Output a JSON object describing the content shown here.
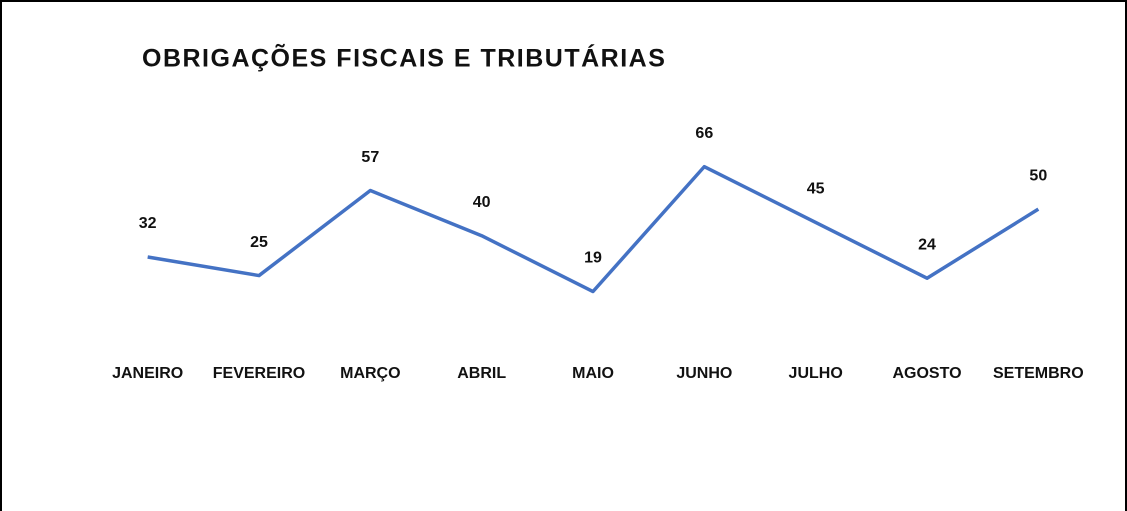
{
  "chart_data": {
    "type": "line",
    "title": "OBRIGAÇÕES FISCAIS E TRIBUTÁRIAS",
    "categories": [
      "JANEIRO",
      "FEVEREIRO",
      "MARÇO",
      "ABRIL",
      "MAIO",
      "JUNHO",
      "JULHO",
      "AGOSTO",
      "SETEMBRO"
    ],
    "values": [
      32,
      25,
      57,
      40,
      19,
      66,
      45,
      24,
      50
    ],
    "color": "#4472c4",
    "ylim": [
      0,
      70
    ]
  }
}
